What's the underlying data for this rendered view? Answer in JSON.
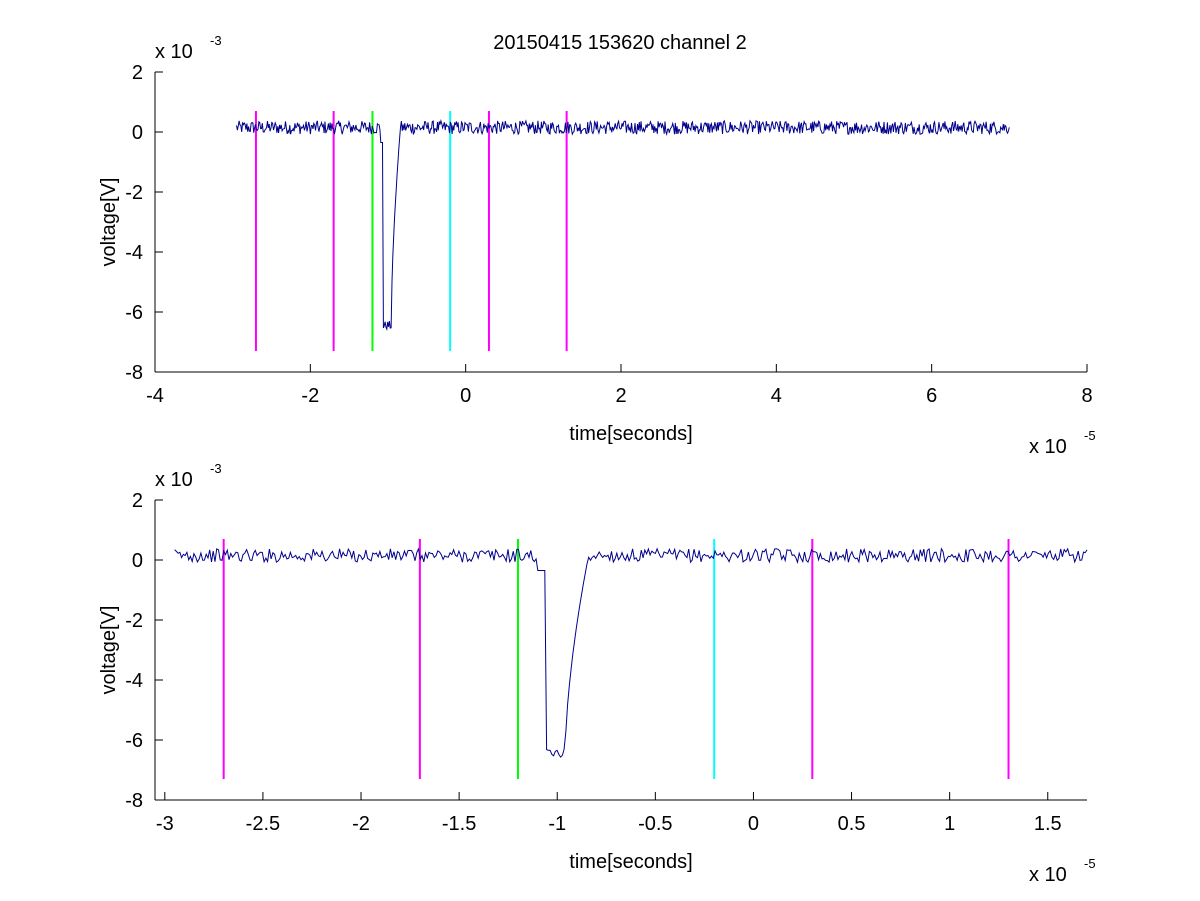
{
  "title": "20150415 153620 channel 2",
  "colors": {
    "signal": "#00008b",
    "magenta": "#ff00ff",
    "green": "#00ff00",
    "cyan": "#00ffff"
  },
  "chart_data": [
    {
      "type": "line",
      "xlabel": "time[seconds]",
      "ylabel": "voltage[V]",
      "x_multiplier": {
        "base": "x 10",
        "exponent": "-5"
      },
      "y_multiplier": {
        "base": "x 10",
        "exponent": "-3"
      },
      "xlim": [
        -4,
        8
      ],
      "ylim": [
        -8,
        2
      ],
      "xticks": [
        -4,
        -2,
        0,
        2,
        4,
        6,
        8
      ],
      "xtick_labels": [
        "-4",
        "-2",
        "0",
        "2",
        "4",
        "6",
        "8"
      ],
      "yticks": [
        2,
        0,
        -2,
        -4,
        -6,
        -8
      ],
      "ytick_labels": [
        "2",
        "0",
        "-2",
        "-4",
        "-6",
        "-8"
      ],
      "grid": false,
      "series": [
        {
          "kind": "signal",
          "color": "#00008b",
          "x_range": [
            -2.95,
            7.0
          ],
          "baseline": 0.15,
          "pulse": {
            "x": -1.0,
            "min": -6.6
          }
        }
      ],
      "vlines": [
        {
          "x": -2.7,
          "color": "#ff00ff",
          "y": [
            -7.3,
            0.7
          ]
        },
        {
          "x": -1.7,
          "color": "#ff00ff",
          "y": [
            -7.3,
            0.7
          ]
        },
        {
          "x": -1.2,
          "color": "#00ff00",
          "y": [
            -7.3,
            0.7
          ]
        },
        {
          "x": -0.2,
          "color": "#00ffff",
          "y": [
            -7.3,
            0.7
          ]
        },
        {
          "x": 0.3,
          "color": "#ff00ff",
          "y": [
            -7.3,
            0.7
          ]
        },
        {
          "x": 1.3,
          "color": "#ff00ff",
          "y": [
            -7.3,
            0.7
          ]
        }
      ]
    },
    {
      "type": "line",
      "xlabel": "time[seconds]",
      "ylabel": "voltage[V]",
      "x_multiplier": {
        "base": "x 10",
        "exponent": "-5"
      },
      "y_multiplier": {
        "base": "x 10",
        "exponent": "-3"
      },
      "xlim": [
        -3.05,
        1.7
      ],
      "ylim": [
        -8,
        2
      ],
      "xticks": [
        -3,
        -2.5,
        -2,
        -1.5,
        -1,
        -0.5,
        0,
        0.5,
        1,
        1.5
      ],
      "xtick_labels": [
        "-3",
        "-2.5",
        "-2",
        "-1.5",
        "-1",
        "-0.5",
        "0",
        "0.5",
        "1",
        "1.5"
      ],
      "yticks": [
        2,
        0,
        -2,
        -4,
        -6,
        -8
      ],
      "ytick_labels": [
        "2",
        "0",
        "-2",
        "-4",
        "-6",
        "-8"
      ],
      "grid": false,
      "series": [
        {
          "kind": "signal",
          "color": "#00008b",
          "x_range": [
            -2.95,
            1.7
          ],
          "baseline": 0.15,
          "pulse": {
            "x": -1.0,
            "min": -6.6
          }
        }
      ],
      "vlines": [
        {
          "x": -2.7,
          "color": "#ff00ff",
          "y": [
            -7.3,
            0.7
          ]
        },
        {
          "x": -1.7,
          "color": "#ff00ff",
          "y": [
            -7.3,
            0.7
          ]
        },
        {
          "x": -1.2,
          "color": "#00ff00",
          "y": [
            -7.3,
            0.7
          ]
        },
        {
          "x": -0.2,
          "color": "#00ffff",
          "y": [
            -7.3,
            0.7
          ]
        },
        {
          "x": 0.3,
          "color": "#ff00ff",
          "y": [
            -7.3,
            0.7
          ]
        },
        {
          "x": 1.3,
          "color": "#ff00ff",
          "y": [
            -7.3,
            0.7
          ]
        }
      ]
    }
  ]
}
